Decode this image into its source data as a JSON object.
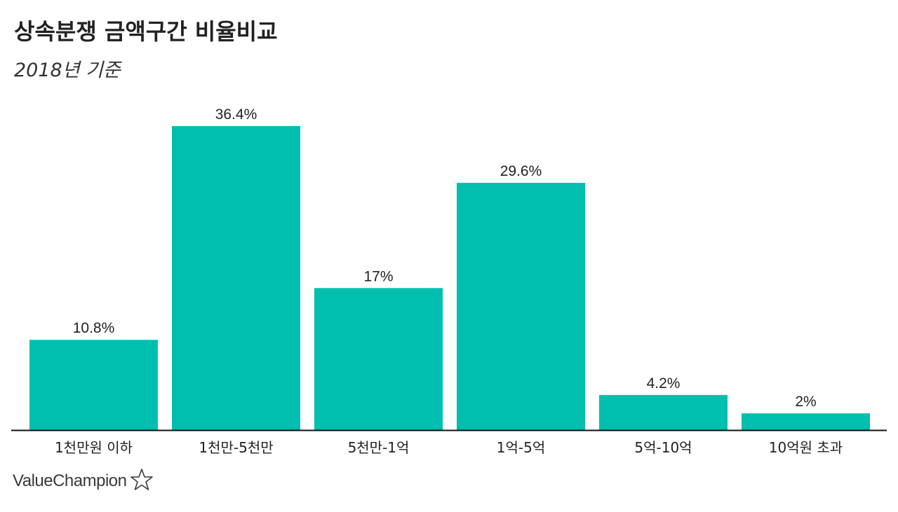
{
  "title": "상속분쟁 금액구간 비율비교",
  "subtitle": "2018년 기준",
  "brand": {
    "name": "ValueChampion",
    "icon": "star-outline-icon"
  },
  "colors": {
    "bar": "#00bfae",
    "axis": "#111111",
    "text": "#222222"
  },
  "chart_data": {
    "type": "bar",
    "categories": [
      "1천만원 이하",
      "1천만-5천만",
      "5천만-1억",
      "1억-5억",
      "5억-10억",
      "10억원 초과"
    ],
    "values": [
      10.8,
      36.4,
      17,
      29.6,
      4.2,
      2
    ],
    "data_labels": [
      "10.8%",
      "36.4%",
      "17%",
      "29.6%",
      "4.2%",
      "2%"
    ],
    "unit": "%",
    "ylim": [
      0,
      36.4
    ],
    "grid": false,
    "legend": "none"
  }
}
